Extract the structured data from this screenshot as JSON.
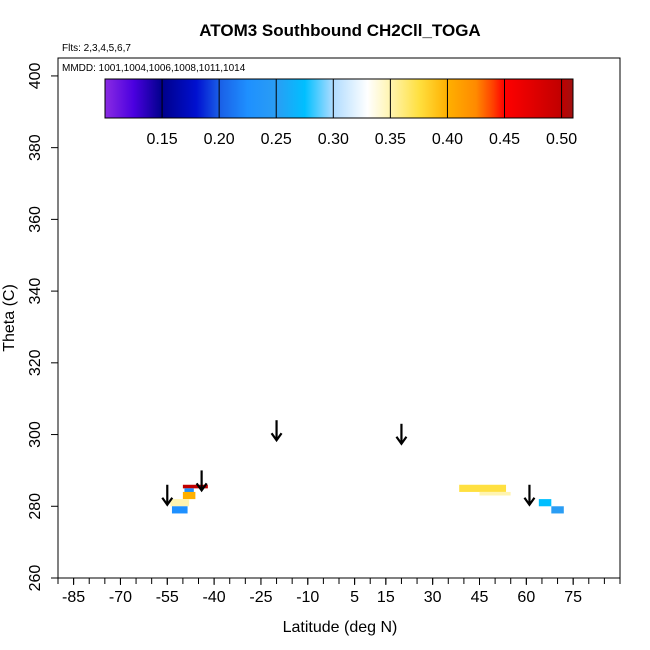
{
  "chart_data": {
    "type": "contour",
    "title": "ATOM3 Southbound CH2Cll_TOGA",
    "flights_label": "Flts: 2,3,4,5,6,7",
    "dates_label": "MMDD: 1001,1004,1006,1008,1011,1014",
    "xlabel": "Latitude (deg N)",
    "ylabel": "Theta (C)",
    "xlim": [
      -90,
      90
    ],
    "ylim": [
      260,
      405
    ],
    "x_ticks": [
      -85,
      -70,
      -55,
      -40,
      -25,
      -10,
      5,
      15,
      30,
      45,
      60,
      75
    ],
    "x_minor_ticks": [
      -90,
      -85,
      -80,
      -75,
      -70,
      -65,
      -60,
      -55,
      -50,
      -45,
      -40,
      -35,
      -30,
      -25,
      -20,
      -15,
      -10,
      -5,
      0,
      5,
      10,
      15,
      20,
      25,
      30,
      35,
      40,
      45,
      50,
      55,
      60,
      65,
      70,
      75,
      80,
      85,
      90
    ],
    "y_ticks": [
      260,
      280,
      300,
      320,
      340,
      360,
      380,
      400
    ],
    "colorbar": {
      "min": 0.1,
      "max": 0.51,
      "ticks": [
        0.15,
        0.2,
        0.25,
        0.3,
        0.35,
        0.4,
        0.45,
        0.5
      ],
      "tick_labels": [
        "0.15",
        "0.20",
        "0.25",
        "0.30",
        "0.35",
        "0.40",
        "0.45",
        "0.50"
      ],
      "colors": [
        [
          0.1,
          "#8a2be2"
        ],
        [
          0.125,
          "#4b00e0"
        ],
        [
          0.15,
          "#00008b"
        ],
        [
          0.18,
          "#0010d0"
        ],
        [
          0.2,
          "#1a5ee6"
        ],
        [
          0.225,
          "#1e90ff"
        ],
        [
          0.25,
          "#2a9df4"
        ],
        [
          0.275,
          "#00bfff"
        ],
        [
          0.3,
          "#b0dcff"
        ],
        [
          0.33,
          "#ffffff"
        ],
        [
          0.35,
          "#fff4b0"
        ],
        [
          0.375,
          "#ffe040"
        ],
        [
          0.4,
          "#ffb000"
        ],
        [
          0.425,
          "#ff8a00"
        ],
        [
          0.44,
          "#ff4000"
        ],
        [
          0.45,
          "#ff0000"
        ],
        [
          0.475,
          "#e00000"
        ],
        [
          0.5,
          "#c00000"
        ],
        [
          0.51,
          "#a01010"
        ]
      ]
    },
    "arrows": [
      {
        "lat": -55,
        "theta": 286
      },
      {
        "lat": -44,
        "theta": 290
      },
      {
        "lat": -20,
        "theta": 304
      },
      {
        "lat": 20,
        "theta": 303
      },
      {
        "lat": 61,
        "theta": 286
      }
    ],
    "patches": [
      {
        "lat": -46,
        "theta_top": 286,
        "theta_bot": 285,
        "lat_w": 8,
        "value": 0.49
      },
      {
        "lat": -48,
        "theta_top": 285,
        "theta_bot": 283,
        "lat_w": 3,
        "value": 0.22
      },
      {
        "lat": -48,
        "theta_top": 284,
        "theta_bot": 282,
        "lat_w": 4,
        "value": 0.4
      },
      {
        "lat": -51,
        "theta_top": 282,
        "theta_bot": 280,
        "lat_w": 6,
        "value": 0.34
      },
      {
        "lat": -51,
        "theta_top": 280,
        "theta_bot": 278,
        "lat_w": 5,
        "value": 0.22
      },
      {
        "lat": 46,
        "theta_top": 286,
        "theta_bot": 284,
        "lat_w": 15,
        "value": 0.37
      },
      {
        "lat": 50,
        "theta_top": 284,
        "theta_bot": 283,
        "lat_w": 10,
        "value": 0.35
      },
      {
        "lat": 60,
        "theta_top": 284,
        "theta_bot": 281,
        "lat_w": 10,
        "value": 0.33
      },
      {
        "lat": 66,
        "theta_top": 282,
        "theta_bot": 280,
        "lat_w": 4,
        "value": 0.27
      },
      {
        "lat": 70,
        "theta_top": 280,
        "theta_bot": 278,
        "lat_w": 4,
        "value": 0.24
      }
    ]
  }
}
